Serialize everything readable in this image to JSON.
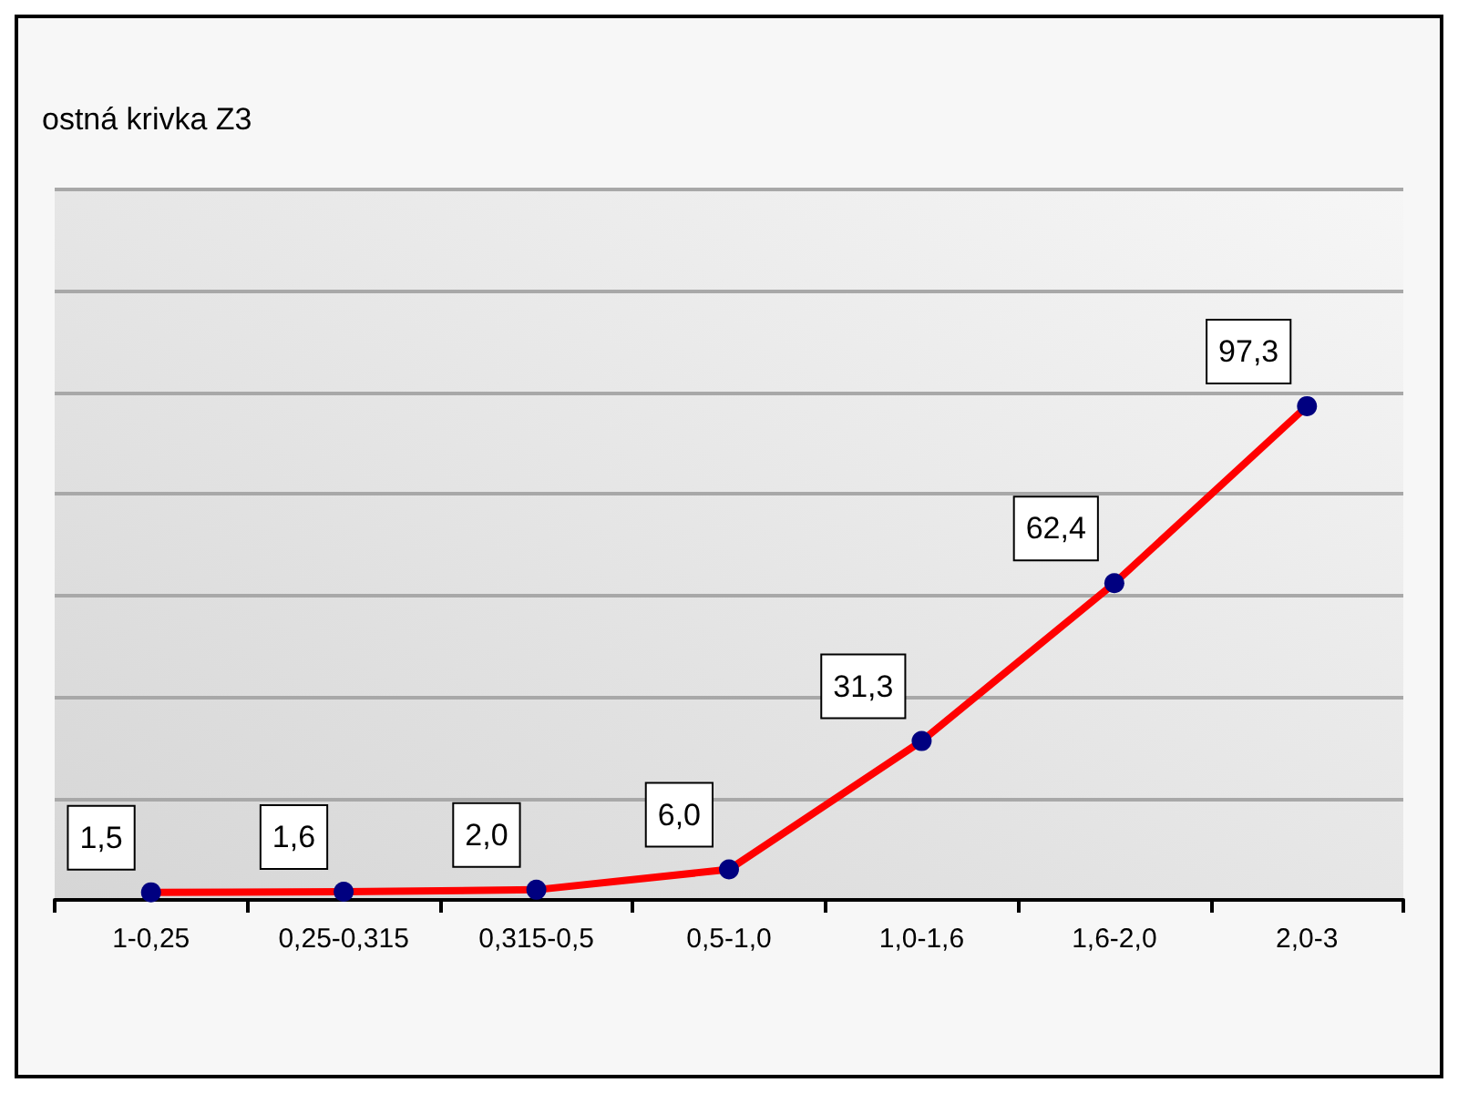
{
  "chart_data": {
    "type": "line",
    "title": "ostná krivka Z3",
    "categories": [
      "1-0,25",
      "0,25-0,315",
      "0,315-0,5",
      "0,5-1,0",
      "1,0-1,6",
      "1,6-2,0",
      "2,0-3"
    ],
    "series": [
      {
        "color": "#ff0000",
        "values": [
          1.5,
          1.6,
          2.0,
          6.0,
          31.3,
          62.4,
          97.3
        ],
        "value_labels": [
          "1,5",
          "1,6",
          "2,0",
          "6,0",
          "31,3",
          "62,4",
          "97,3"
        ]
      }
    ],
    "ylim": [
      0,
      140
    ],
    "yticks": [
      {
        "value": 0,
        "label": null
      },
      {
        "value": 20,
        "label": null
      },
      {
        "value": 40,
        "label": null
      },
      {
        "value": 60,
        "label": null
      },
      {
        "value": 80,
        "label": null
      },
      {
        "value": 100,
        "label": null
      },
      {
        "value": 120,
        "label": null
      },
      {
        "value": 140,
        "label": null
      }
    ],
    "grid": "y",
    "tick_labels": "x",
    "marker": "circle",
    "line_style": "solid"
  }
}
